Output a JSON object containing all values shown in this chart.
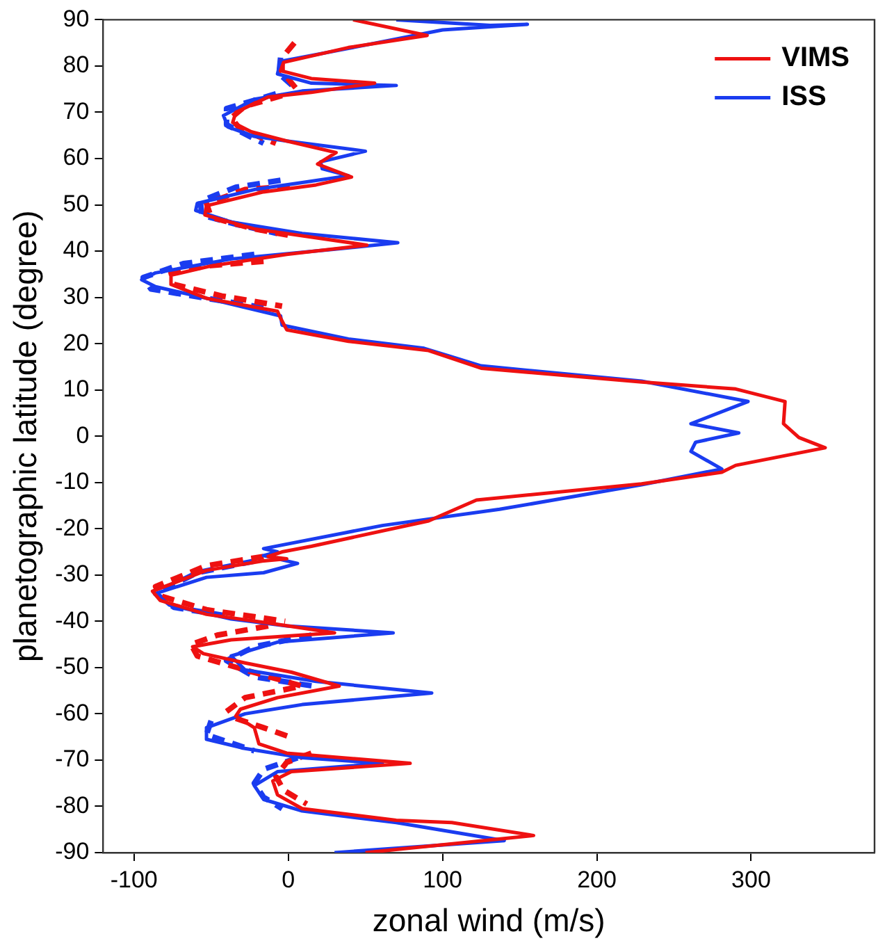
{
  "chart_data": {
    "type": "line",
    "xlabel": "zonal wind (m/s)",
    "ylabel": "planetographic latitude (degree)",
    "xlim": [
      -120,
      380
    ],
    "xticks": [
      -100,
      0,
      100,
      200,
      300
    ],
    "ylim": [
      -90,
      90
    ],
    "yticks": [
      -90,
      -80,
      -70,
      -60,
      -50,
      -40,
      -30,
      -20,
      -10,
      0,
      10,
      20,
      30,
      40,
      50,
      60,
      70,
      80,
      90
    ],
    "grid": false,
    "legend": "top right",
    "marker": "none",
    "series": [
      {
        "name": "VIMS",
        "color": "#ee1111",
        "line_style": "solid",
        "x": [
          42,
          90,
          39,
          -3,
          -5,
          15,
          56,
          15,
          -13,
          -34,
          -36,
          -24,
          -1,
          31,
          19,
          41,
          18,
          -16,
          -53,
          -54,
          -22,
          51,
          -1,
          -50,
          -76,
          -76,
          -53,
          -7,
          -5,
          -1,
          39,
          91,
          125,
          229,
          290,
          322,
          321,
          331,
          348,
          290,
          281,
          229,
          122,
          91,
          15,
          -4,
          -13,
          -1,
          -17,
          -53,
          -88,
          -83,
          -53,
          -10,
          30,
          -37,
          -62,
          -55,
          -28,
          2,
          33,
          -7,
          -31,
          -34,
          -22,
          -19,
          -1,
          79,
          2,
          -10,
          -7,
          9,
          70,
          106,
          159,
          50
        ],
        "values": [
          90,
          86.6,
          84,
          80.8,
          79,
          77.3,
          76.3,
          74.3,
          73.3,
          70,
          67.8,
          65.8,
          63.8,
          61.3,
          58.8,
          56,
          54.3,
          52.8,
          49.8,
          47.8,
          44.8,
          41.3,
          39.3,
          36.8,
          34.8,
          32.8,
          29.8,
          27,
          25.5,
          23,
          20.5,
          18.5,
          14.7,
          11.7,
          10.2,
          7.5,
          2.7,
          -0.3,
          -2.5,
          -6.3,
          -7.8,
          -10.3,
          -13.8,
          -18.3,
          -23.8,
          -25,
          -26,
          -26.5,
          -27,
          -29,
          -33.5,
          -35.5,
          -38.5,
          -40.5,
          -42.5,
          -44,
          -45.5,
          -47,
          -49,
          -51,
          -54,
          -56.5,
          -59,
          -60.5,
          -63,
          -66.5,
          -68.5,
          -70.7,
          -72.5,
          -74.5,
          -77.5,
          -80.5,
          -83,
          -83.5,
          -86.3,
          -90
        ]
      },
      {
        "name": "ISS",
        "color": "#1a3cf0",
        "line_style": "solid",
        "x": [
          70,
          131,
          155,
          100,
          39,
          -5,
          -7,
          15,
          70,
          9,
          -22,
          -42,
          -39,
          -22,
          -1,
          50,
          21,
          22,
          39,
          9,
          -22,
          -59,
          -60,
          -37,
          9,
          71,
          27,
          -37,
          -86,
          -95,
          -86,
          -53,
          -5,
          -4,
          39,
          88,
          125,
          229,
          298,
          261,
          292,
          264,
          261,
          281,
          229,
          137,
          61,
          -16,
          -7,
          -16,
          6,
          -16,
          -53,
          -86,
          -77,
          -37,
          -1,
          68,
          -7,
          -37,
          -28,
          18,
          93,
          9,
          -28,
          -53,
          -53,
          -28,
          9,
          61,
          -7,
          -22,
          -16,
          9,
          70,
          140,
          30
        ],
        "values": [
          90,
          88.8,
          89,
          87.8,
          83.8,
          81,
          78.3,
          76.3,
          75.8,
          74.6,
          72.8,
          69.3,
          66.8,
          64.8,
          63.8,
          61.6,
          59.3,
          57.8,
          56.3,
          54.8,
          53.3,
          50.3,
          48.8,
          46.3,
          43.8,
          41.8,
          40.3,
          38.3,
          35.3,
          33.8,
          32.3,
          29.8,
          26,
          24,
          21,
          19,
          15.2,
          11.9,
          7.5,
          2.7,
          0.7,
          -1.3,
          -3.3,
          -7.1,
          -10.5,
          -15.8,
          -19.3,
          -24.3,
          -25,
          -25.8,
          -27.5,
          -29.5,
          -30.5,
          -34,
          -36.5,
          -39.5,
          -41,
          -42.5,
          -44.5,
          -47.5,
          -50.5,
          -53,
          -55.5,
          -58,
          -60,
          -63,
          -65.5,
          -67.5,
          -69.5,
          -70.7,
          -72.5,
          -75.5,
          -78.5,
          -81,
          -83.5,
          -87.4,
          -90
        ]
      },
      {
        "color": "#ee1111",
        "line_style": "dashed",
        "x": [
          4,
          -4,
          -4,
          6,
          null,
          -4,
          -28,
          -37,
          -31,
          -8,
          null,
          1,
          -28,
          -53,
          -50,
          -22,
          2,
          null,
          -16,
          -53,
          -76,
          -74,
          -43,
          -4,
          null,
          -16,
          -53,
          -86,
          -83,
          -53,
          -2,
          null,
          -13,
          -46,
          -63,
          -59,
          -28,
          -7,
          9,
          -28,
          -40,
          null,
          -34,
          -16,
          1,
          null,
          15,
          -1,
          -8,
          -3,
          12
        ],
        "values": [
          85,
          81.8,
          78.8,
          74.8,
          null,
          73.6,
          71.3,
          68.8,
          66.3,
          63.3,
          null,
          54,
          53.3,
          50.3,
          47.3,
          44.8,
          43.3,
          null,
          37.8,
          36.8,
          35.3,
          32.8,
          30.3,
          28.1,
          null,
          -26,
          -28,
          -32.5,
          -34.5,
          -37.5,
          -40,
          null,
          -41,
          -43,
          -45,
          -47.5,
          -50.5,
          -52.5,
          -54,
          -56.5,
          -59.5,
          null,
          -61,
          -63,
          -65,
          null,
          -68.5,
          -70.5,
          -73.5,
          -76.5,
          -79.5
        ]
      },
      {
        "color": "#1a3cf0",
        "line_style": "dashed",
        "x": [
          -5,
          -6,
          6,
          null,
          -8,
          -40,
          -40,
          -16,
          null,
          -5,
          -34,
          -57,
          -56,
          -34,
          -7,
          null,
          -22,
          -68,
          -94,
          -89,
          -53,
          -16,
          null,
          -22,
          -59,
          -86,
          -74,
          -37,
          null,
          15,
          -22,
          -40,
          -22,
          16,
          null,
          -50,
          -53,
          -22,
          null,
          6,
          -16,
          -22,
          -16,
          -4
        ],
        "values": [
          81.8,
          78.3,
          74.8,
          null,
          74,
          70.8,
          67.3,
          63.3,
          null,
          55.3,
          53.8,
          50.8,
          47.8,
          45.8,
          43.8,
          null,
          39.3,
          37.3,
          34.3,
          31.8,
          29.8,
          27.8,
          null,
          -27,
          -29.5,
          -34,
          -37,
          -39,
          null,
          -43,
          -45.5,
          -48.5,
          -52,
          -54,
          null,
          -61.5,
          -64.5,
          -68,
          null,
          -69.5,
          -72,
          -75,
          -78,
          -80.5
        ]
      }
    ]
  }
}
